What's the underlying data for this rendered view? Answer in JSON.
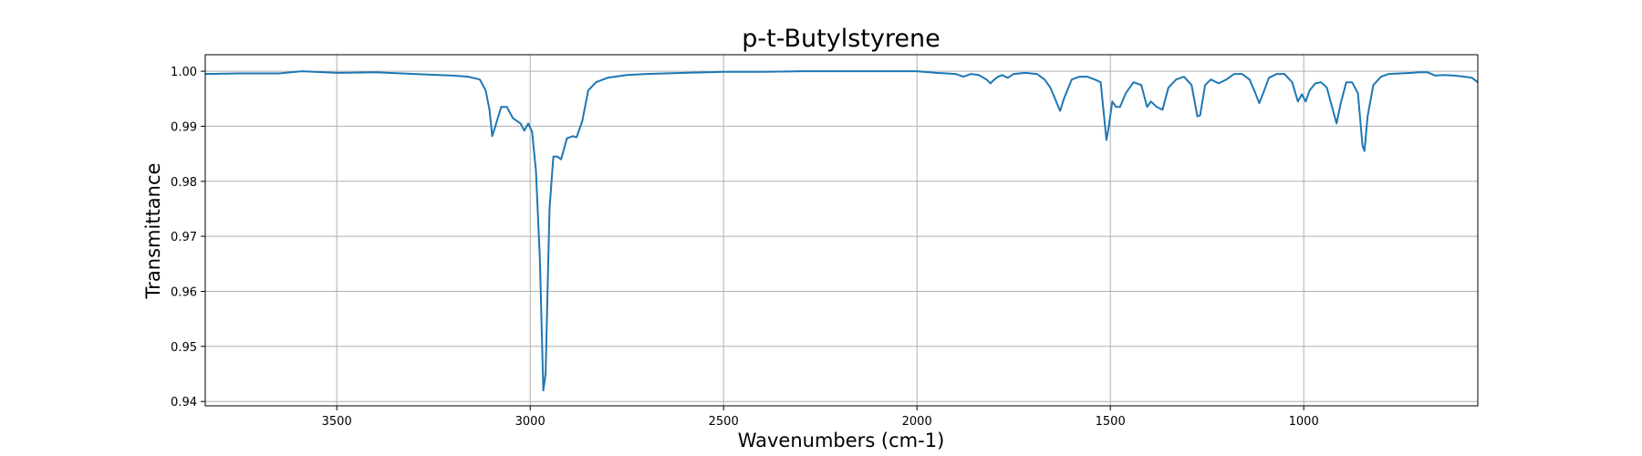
{
  "chart_data": {
    "type": "line",
    "title": "p-t-Butylstyrene",
    "xlabel": "Wavenumbers (cm-1)",
    "ylabel": "Transmittance",
    "xlim": [
      3840,
      550
    ],
    "ylim": [
      0.9392,
      1.003
    ],
    "x_reversed": true,
    "grid": true,
    "legend": "none",
    "x_ticks": [
      3500,
      3000,
      2500,
      2000,
      1500,
      1000
    ],
    "x_tick_labels": [
      "3500",
      "3000",
      "2500",
      "2000",
      "1500",
      "1000"
    ],
    "y_ticks": [
      0.94,
      0.95,
      0.96,
      0.97,
      0.98,
      0.99,
      1.0
    ],
    "y_tick_labels": [
      "0.94",
      "0.95",
      "0.96",
      "0.97",
      "0.98",
      "0.99",
      "1.00"
    ],
    "series": [
      {
        "color": "#1f77b4",
        "points": [
          [
            3840,
            0.9995
          ],
          [
            3750,
            0.9996
          ],
          [
            3650,
            0.9996
          ],
          [
            3590,
            1.0
          ],
          [
            3500,
            0.9997
          ],
          [
            3400,
            0.9998
          ],
          [
            3300,
            0.9995
          ],
          [
            3200,
            0.9992
          ],
          [
            3160,
            0.999
          ],
          [
            3130,
            0.9985
          ],
          [
            3115,
            0.9965
          ],
          [
            3105,
            0.993
          ],
          [
            3098,
            0.9882
          ],
          [
            3090,
            0.99
          ],
          [
            3075,
            0.9935
          ],
          [
            3060,
            0.9935
          ],
          [
            3045,
            0.9915
          ],
          [
            3025,
            0.9905
          ],
          [
            3015,
            0.9892
          ],
          [
            3005,
            0.9905
          ],
          [
            2995,
            0.989
          ],
          [
            2985,
            0.982
          ],
          [
            2975,
            0.966
          ],
          [
            2966,
            0.942
          ],
          [
            2960,
            0.945
          ],
          [
            2950,
            0.975
          ],
          [
            2940,
            0.9845
          ],
          [
            2930,
            0.9845
          ],
          [
            2920,
            0.984
          ],
          [
            2905,
            0.9878
          ],
          [
            2890,
            0.9882
          ],
          [
            2880,
            0.988
          ],
          [
            2865,
            0.991
          ],
          [
            2850,
            0.9965
          ],
          [
            2830,
            0.998
          ],
          [
            2800,
            0.9988
          ],
          [
            2750,
            0.9993
          ],
          [
            2700,
            0.9995
          ],
          [
            2600,
            0.9997
          ],
          [
            2500,
            0.9999
          ],
          [
            2400,
            0.9999
          ],
          [
            2300,
            1.0
          ],
          [
            2200,
            1.0
          ],
          [
            2100,
            1.0
          ],
          [
            2000,
            1.0
          ],
          [
            1950,
            0.9997
          ],
          [
            1900,
            0.9995
          ],
          [
            1880,
            0.999
          ],
          [
            1860,
            0.9995
          ],
          [
            1840,
            0.9993
          ],
          [
            1820,
            0.9985
          ],
          [
            1810,
            0.9978
          ],
          [
            1800,
            0.9985
          ],
          [
            1790,
            0.999
          ],
          [
            1780,
            0.9993
          ],
          [
            1765,
            0.9988
          ],
          [
            1750,
            0.9995
          ],
          [
            1720,
            0.9997
          ],
          [
            1690,
            0.9995
          ],
          [
            1670,
            0.9985
          ],
          [
            1655,
            0.997
          ],
          [
            1640,
            0.9945
          ],
          [
            1630,
            0.9928
          ],
          [
            1620,
            0.995
          ],
          [
            1600,
            0.9985
          ],
          [
            1580,
            0.999
          ],
          [
            1560,
            0.999
          ],
          [
            1540,
            0.9985
          ],
          [
            1525,
            0.998
          ],
          [
            1515,
            0.991
          ],
          [
            1510,
            0.9875
          ],
          [
            1505,
            0.9895
          ],
          [
            1495,
            0.9945
          ],
          [
            1485,
            0.9935
          ],
          [
            1475,
            0.9935
          ],
          [
            1460,
            0.996
          ],
          [
            1440,
            0.998
          ],
          [
            1420,
            0.9975
          ],
          [
            1405,
            0.9935
          ],
          [
            1395,
            0.9945
          ],
          [
            1380,
            0.9935
          ],
          [
            1365,
            0.993
          ],
          [
            1350,
            0.997
          ],
          [
            1330,
            0.9985
          ],
          [
            1310,
            0.999
          ],
          [
            1290,
            0.9975
          ],
          [
            1275,
            0.9918
          ],
          [
            1268,
            0.992
          ],
          [
            1255,
            0.9975
          ],
          [
            1240,
            0.9985
          ],
          [
            1220,
            0.9978
          ],
          [
            1200,
            0.9985
          ],
          [
            1180,
            0.9995
          ],
          [
            1160,
            0.9995
          ],
          [
            1140,
            0.9985
          ],
          [
            1125,
            0.996
          ],
          [
            1115,
            0.9942
          ],
          [
            1105,
            0.996
          ],
          [
            1090,
            0.9988
          ],
          [
            1070,
            0.9995
          ],
          [
            1050,
            0.9995
          ],
          [
            1030,
            0.998
          ],
          [
            1015,
            0.9945
          ],
          [
            1005,
            0.9958
          ],
          [
            995,
            0.9945
          ],
          [
            985,
            0.9965
          ],
          [
            970,
            0.9978
          ],
          [
            955,
            0.998
          ],
          [
            940,
            0.997
          ],
          [
            925,
            0.993
          ],
          [
            915,
            0.9905
          ],
          [
            905,
            0.994
          ],
          [
            890,
            0.998
          ],
          [
            875,
            0.998
          ],
          [
            860,
            0.996
          ],
          [
            848,
            0.9865
          ],
          [
            843,
            0.9855
          ],
          [
            835,
            0.9918
          ],
          [
            820,
            0.9975
          ],
          [
            800,
            0.999
          ],
          [
            780,
            0.9995
          ],
          [
            750,
            0.9996
          ],
          [
            720,
            0.9997
          ],
          [
            700,
            0.9998
          ],
          [
            680,
            0.9998
          ],
          [
            660,
            0.9992
          ],
          [
            640,
            0.9993
          ],
          [
            610,
            0.9992
          ],
          [
            585,
            0.999
          ],
          [
            565,
            0.9988
          ],
          [
            550,
            0.998
          ]
        ]
      }
    ]
  }
}
